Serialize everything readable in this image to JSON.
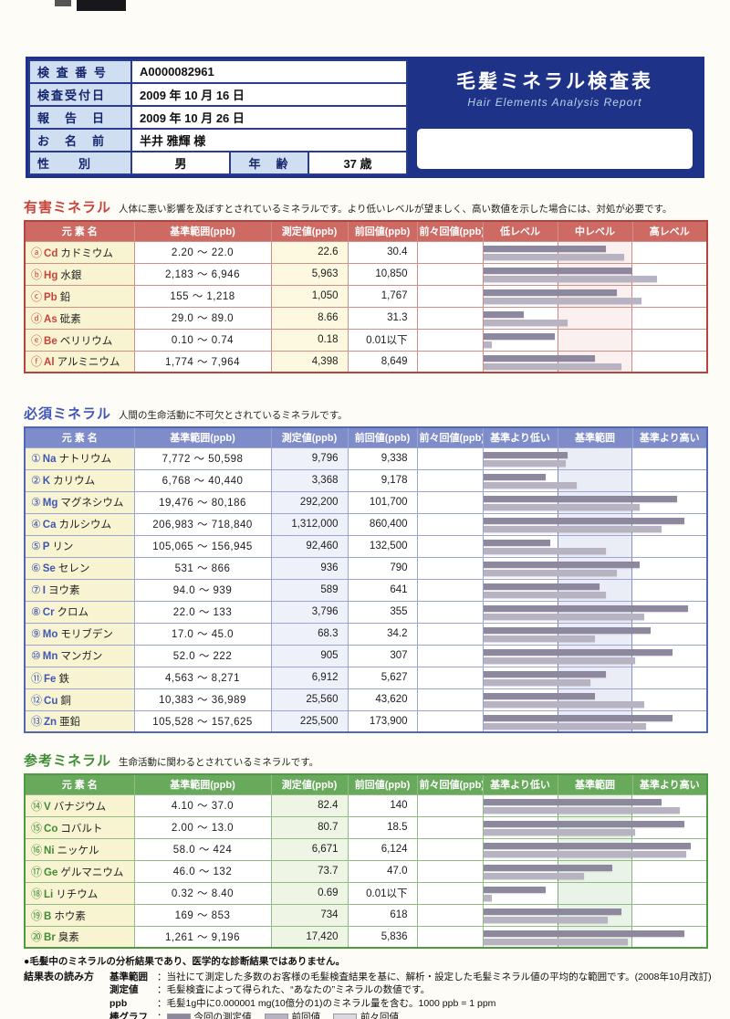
{
  "page": {
    "title": "毛髪ミネラル検査表",
    "subtitle": "Hair Elements Analysis Report"
  },
  "header": {
    "rows": [
      {
        "label": "検 査 番 号",
        "value": "A0000082961"
      },
      {
        "label": "検査受付日",
        "value": "2009 年 10 月 16 日"
      },
      {
        "label": "報　告　日",
        "value": "2009 年 10 月 26 日"
      },
      {
        "label": "お　名　前",
        "value": "半井 雅輝 様"
      },
      {
        "label": "性　　別",
        "value": "男",
        "label2": "年　齢",
        "value2": "37 歳"
      }
    ]
  },
  "sections": [
    {
      "id": "harmful",
      "title": "有害ミネラル",
      "description": "人体に悪い影響を及ぼすとされているミネラルです。より低いレベルが望ましく、高い数値を示した場合には、対処が必要です。",
      "accent": "#c6433c",
      "columns": [
        "元 素 名",
        "基準範囲(ppb)",
        "測定値(ppb)",
        "前回値(ppb)",
        "前々回値(ppb)"
      ],
      "zones": [
        "低レベル",
        "中レベル",
        "高レベル"
      ],
      "rows": [
        {
          "mark": "ⓐ",
          "symbol": "Cd",
          "name": "カドミウム",
          "range": "2.20 ～ 22.0",
          "measured": "22.6",
          "previous": "30.4",
          "prev2": "",
          "bar1": 0.55,
          "bar2": 0.63
        },
        {
          "mark": "ⓑ",
          "symbol": "Hg",
          "name": "水銀",
          "range": "2,183 ～ 6,946",
          "measured": "5,963",
          "previous": "10,850",
          "prev2": "",
          "bar1": 0.67,
          "bar2": 0.78
        },
        {
          "mark": "ⓒ",
          "symbol": "Pb",
          "name": "鉛",
          "range": "155 ～ 1,218",
          "measured": "1,050",
          "previous": "1,767",
          "prev2": "",
          "bar1": 0.6,
          "bar2": 0.71
        },
        {
          "mark": "ⓓ",
          "symbol": "As",
          "name": "砒素",
          "range": "29.0 ～ 89.0",
          "measured": "8.66",
          "previous": "31.3",
          "prev2": "",
          "bar1": 0.18,
          "bar2": 0.38
        },
        {
          "mark": "ⓔ",
          "symbol": "Be",
          "name": "ベリリウム",
          "range": "0.10 ～ 0.74",
          "measured": "0.18",
          "previous": "0.01以下",
          "prev2": "",
          "bar1": 0.32,
          "bar2": 0.04
        },
        {
          "mark": "ⓕ",
          "symbol": "Al",
          "name": "アルミニウム",
          "range": "1,774 ～ 7,964",
          "measured": "4,398",
          "previous": "8,649",
          "prev2": "",
          "bar1": 0.5,
          "bar2": 0.62
        }
      ]
    },
    {
      "id": "essential",
      "title": "必須ミネラル",
      "description": "人間の生命活動に不可欠とされているミネラルです。",
      "accent": "#3f56b5",
      "columns": [
        "元 素 名",
        "基準範囲(ppb)",
        "測定値(ppb)",
        "前回値(ppb)",
        "前々回値(ppb)"
      ],
      "zones": [
        "基準より低い",
        "基準範囲",
        "基準より高い"
      ],
      "rows": [
        {
          "mark": "①",
          "symbol": "Na",
          "name": "ナトリウム",
          "range": "7,772 ～ 50,598",
          "measured": "9,796",
          "previous": "9,338",
          "prev2": "",
          "bar1": 0.38,
          "bar2": 0.37
        },
        {
          "mark": "②",
          "symbol": "K",
          "name": "カリウム",
          "range": "6,768 ～ 40,440",
          "measured": "3,368",
          "previous": "9,178",
          "prev2": "",
          "bar1": 0.28,
          "bar2": 0.42
        },
        {
          "mark": "③",
          "symbol": "Mg",
          "name": "マグネシウム",
          "range": "19,476 ～ 80,186",
          "measured": "292,200",
          "previous": "101,700",
          "prev2": "",
          "bar1": 0.87,
          "bar2": 0.7
        },
        {
          "mark": "④",
          "symbol": "Ca",
          "name": "カルシウム",
          "range": "206,983 ～ 718,840",
          "measured": "1,312,000",
          "previous": "860,400",
          "prev2": "",
          "bar1": 0.9,
          "bar2": 0.8
        },
        {
          "mark": "⑤",
          "symbol": "P",
          "name": "リン",
          "range": "105,065 ～ 156,945",
          "measured": "92,460",
          "previous": "132,500",
          "prev2": "",
          "bar1": 0.3,
          "bar2": 0.55
        },
        {
          "mark": "⑥",
          "symbol": "Se",
          "name": "セレン",
          "range": "531 ～ 866",
          "measured": "936",
          "previous": "790",
          "prev2": "",
          "bar1": 0.7,
          "bar2": 0.6
        },
        {
          "mark": "⑦",
          "symbol": "I",
          "name": "ヨウ素",
          "range": "94.0 ～ 939",
          "measured": "589",
          "previous": "641",
          "prev2": "",
          "bar1": 0.52,
          "bar2": 0.55
        },
        {
          "mark": "⑧",
          "symbol": "Cr",
          "name": "クロム",
          "range": "22.0 ～ 133",
          "measured": "3,796",
          "previous": "355",
          "prev2": "",
          "bar1": 0.92,
          "bar2": 0.72
        },
        {
          "mark": "⑨",
          "symbol": "Mo",
          "name": "モリブデン",
          "range": "17.0 ～ 45.0",
          "measured": "68.3",
          "previous": "34.2",
          "prev2": "",
          "bar1": 0.75,
          "bar2": 0.5
        },
        {
          "mark": "⑩",
          "symbol": "Mn",
          "name": "マンガン",
          "range": "52.0 ～ 222",
          "measured": "905",
          "previous": "307",
          "prev2": "",
          "bar1": 0.85,
          "bar2": 0.68
        },
        {
          "mark": "⑪",
          "symbol": "Fe",
          "name": "鉄",
          "range": "4,563 ～ 8,271",
          "measured": "6,912",
          "previous": "5,627",
          "prev2": "",
          "bar1": 0.55,
          "bar2": 0.48
        },
        {
          "mark": "⑫",
          "symbol": "Cu",
          "name": "銅",
          "range": "10,383 ～ 36,989",
          "measured": "25,560",
          "previous": "43,620",
          "prev2": "",
          "bar1": 0.5,
          "bar2": 0.72
        },
        {
          "mark": "⑬",
          "symbol": "Zn",
          "name": "亜鉛",
          "range": "105,528 ～ 157,625",
          "measured": "225,500",
          "previous": "173,900",
          "prev2": "",
          "bar1": 0.85,
          "bar2": 0.73
        }
      ]
    },
    {
      "id": "reference",
      "title": "参考ミネラル",
      "description": "生命活動に関わるとされているミネラルです。",
      "accent": "#3f8c35",
      "columns": [
        "元 素 名",
        "基準範囲(ppb)",
        "測定値(ppb)",
        "前回値(ppb)",
        "前々回値(ppb)"
      ],
      "zones": [
        "基準より低い",
        "基準範囲",
        "基準より高い"
      ],
      "rows": [
        {
          "mark": "⑭",
          "symbol": "V",
          "name": "バナジウム",
          "range": "4.10 ～ 37.0",
          "measured": "82.4",
          "previous": "140",
          "prev2": "",
          "bar1": 0.8,
          "bar2": 0.88
        },
        {
          "mark": "⑮",
          "symbol": "Co",
          "name": "コバルト",
          "range": "2.00 ～ 13.0",
          "measured": "80.7",
          "previous": "18.5",
          "prev2": "",
          "bar1": 0.9,
          "bar2": 0.68
        },
        {
          "mark": "⑯",
          "symbol": "Ni",
          "name": "ニッケル",
          "range": "58.0 ～ 424",
          "measured": "6,671",
          "previous": "6,124",
          "prev2": "",
          "bar1": 0.93,
          "bar2": 0.91
        },
        {
          "mark": "⑰",
          "symbol": "Ge",
          "name": "ゲルマニウム",
          "range": "46.0 ～ 132",
          "measured": "73.7",
          "previous": "47.0",
          "prev2": "",
          "bar1": 0.58,
          "bar2": 0.45
        },
        {
          "mark": "⑱",
          "symbol": "Li",
          "name": "リチウム",
          "range": "0.32 ～ 8.40",
          "measured": "0.69",
          "previous": "0.01以下",
          "prev2": "",
          "bar1": 0.28,
          "bar2": 0.04
        },
        {
          "mark": "⑲",
          "symbol": "B",
          "name": "ホウ素",
          "range": "169 ～ 853",
          "measured": "734",
          "previous": "618",
          "prev2": "",
          "bar1": 0.62,
          "bar2": 0.56
        },
        {
          "mark": "⑳",
          "symbol": "Br",
          "name": "臭素",
          "range": "1,261 ～ 9,196",
          "measured": "17,420",
          "previous": "5,836",
          "prev2": "",
          "bar1": 0.9,
          "bar2": 0.65
        }
      ]
    }
  ],
  "footer": {
    "note": "●毛髪中のミネラルの分析結果であり、医学的な診断結果ではありません。",
    "guide_title": "結果表の読み方",
    "items": [
      {
        "term": "基準範囲",
        "desc": "当社にて測定した多数のお客様の毛髪検査結果を基に、解析・設定した毛髪ミネラル値の平均的な範囲です。(2008年10月改訂)"
      },
      {
        "term": "測定値",
        "desc": "毛髪検査によって得られた、“あなたの”ミネラルの数値です。"
      },
      {
        "term": "ppb",
        "desc": "毛髪1g中に0.000001 mg(10億分の1)のミネラル量を含む。1000 ppb = 1 ppm"
      }
    ],
    "legend": {
      "term": "棒グラフ",
      "items": [
        {
          "swatch": "#8d889d",
          "label": "今回の測定値"
        },
        {
          "swatch": "#b7b3c3",
          "label": "前回値"
        },
        {
          "swatch": "#dbd8e2",
          "label": "前々回値"
        }
      ]
    }
  }
}
